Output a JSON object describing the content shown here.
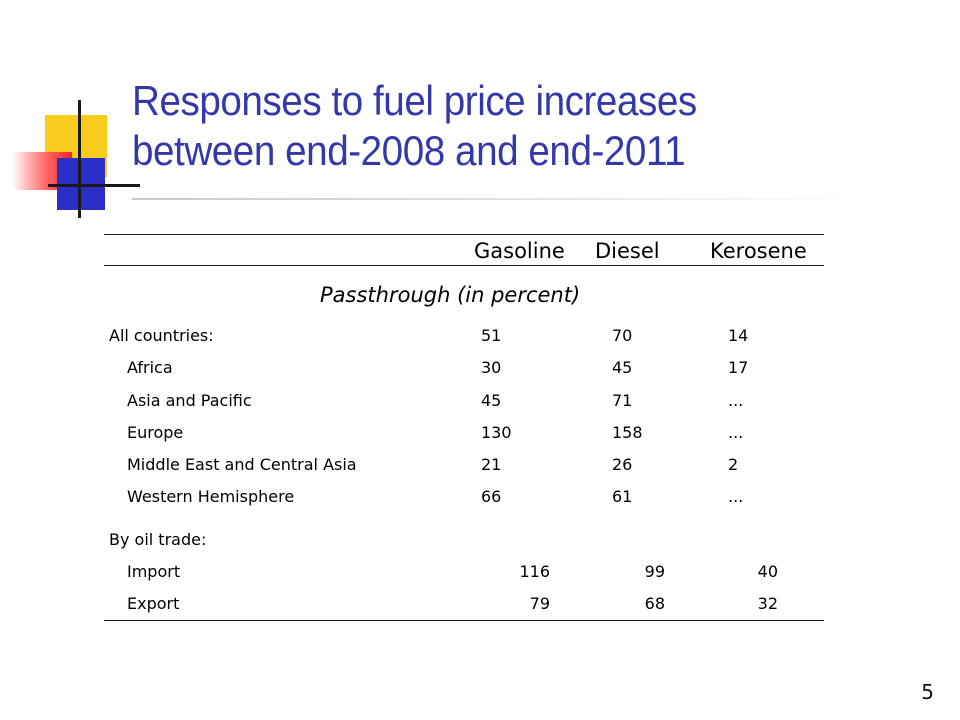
{
  "slide": {
    "title_line1": "Responses to fuel price increases",
    "title_line2": "between end-2008 and end-2011",
    "page_number": "5"
  },
  "table": {
    "columns": [
      "Gasoline",
      "Diesel",
      "Kerosene"
    ],
    "subheader": "Passthrough (in percent)",
    "group1": {
      "label": "All countries:",
      "values": [
        "51",
        "70",
        "14"
      ],
      "rows": [
        {
          "label": "Africa",
          "values": [
            "30",
            "45",
            "17"
          ]
        },
        {
          "label": "Asia and Pacific",
          "values": [
            "45",
            "71",
            "..."
          ]
        },
        {
          "label": "Europe",
          "values": [
            "130",
            "158",
            "..."
          ]
        },
        {
          "label": "Middle East and Central Asia",
          "values": [
            "21",
            "26",
            "2"
          ]
        },
        {
          "label": "Western Hemisphere",
          "values": [
            "66",
            "61",
            "..."
          ]
        }
      ]
    },
    "group2": {
      "label": "By oil trade:",
      "rows": [
        {
          "label": "Import",
          "values": [
            "116",
            "99",
            "40"
          ]
        },
        {
          "label": "Export",
          "values": [
            "79",
            "68",
            "32"
          ]
        }
      ]
    }
  }
}
